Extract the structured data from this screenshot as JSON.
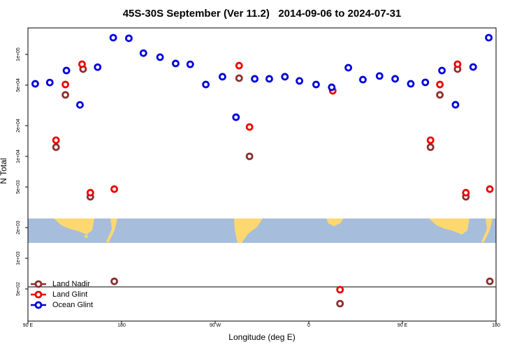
{
  "chart_data": {
    "type": "scatter",
    "title": "45S-30S September (Ver 11.2)   2014-09-06 to 2024-07-31",
    "x_label": "Longitude (deg E)",
    "y_label": "N Total",
    "ylog": true,
    "xlim": [
      90,
      540
    ],
    "ylim": [
      242,
      182000
    ],
    "xticks": [
      {
        "value": 90,
        "label": "90 E"
      },
      180,
      {
        "value": 270,
        "label": "90 W"
      },
      {
        "value": 360,
        "label": "0"
      },
      {
        "value": 450,
        "label": "90 E"
      },
      {
        "value": 540,
        "label": "180"
      }
    ],
    "yticks": [
      {
        "value": 100000,
        "label": "1e+05"
      },
      {
        "value": 50000,
        "label": "5e+04"
      },
      {
        "value": 20000,
        "label": "2e+04"
      },
      {
        "value": 10000,
        "label": "1e+04"
      },
      {
        "value": 5000,
        "label": "5e+03"
      },
      {
        "value": 2000,
        "label": "2e+03"
      },
      {
        "value": 1000,
        "label": "1e+03"
      },
      {
        "value": 500,
        "label": "5e+02"
      }
    ],
    "legend": "bottom-left",
    "series": [
      {
        "name": "Land Nadir",
        "color": "#8b2e2e",
        "x": [
          117,
          126,
          143,
          150,
          173,
          293,
          303,
          390,
          477,
          486,
          503,
          511,
          534
        ],
        "values": [
          12300,
          40100,
          71800,
          4010,
          594,
          58500,
          10000,
          359,
          12300,
          40100,
          71800,
          4010,
          594
        ]
      },
      {
        "name": "Land Glint",
        "color": "#ee0000",
        "x": [
          117,
          126,
          142,
          150,
          173,
          293,
          303,
          383,
          390,
          477,
          486,
          503,
          511,
          534
        ],
        "values": [
          14400,
          50700,
          80200,
          4400,
          4770,
          77600,
          19400,
          44000,
          492,
          14400,
          50700,
          80200,
          4400,
          4770
        ]
      },
      {
        "name": "Ocean Glint",
        "color": "#0000dd",
        "x": [
          97,
          111,
          127,
          140,
          157,
          172,
          187,
          201,
          217,
          232,
          246,
          261,
          277,
          290,
          308,
          322,
          337,
          351,
          367,
          382,
          398,
          412,
          428,
          443,
          458,
          472,
          488,
          501,
          518,
          533
        ],
        "values": [
          51500,
          53000,
          69500,
          32000,
          75000,
          146000,
          144000,
          103000,
          94000,
          81500,
          80000,
          50700,
          60400,
          24200,
          57600,
          57600,
          60400,
          55000,
          50700,
          47600,
          74100,
          56600,
          61400,
          57600,
          51500,
          53200,
          69500,
          32100,
          75300,
          146000
        ]
      }
    ]
  }
}
